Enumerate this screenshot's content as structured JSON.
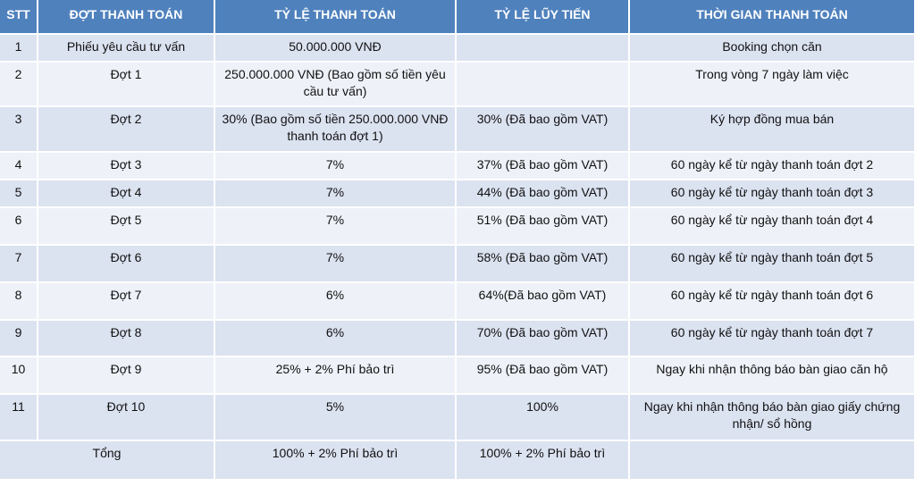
{
  "table": {
    "headers": {
      "stt": "STT",
      "phase": "ĐỢT THANH TOÁN",
      "rate": "TỶ LỆ THANH TOÁN",
      "cumulative": "TỶ LỆ LŨY TIẾN",
      "time": "THỜI GIAN THANH TOÁN"
    },
    "rows": [
      {
        "stt": "1",
        "phase": "Phiếu yêu cầu tư vấn",
        "rate": "50.000.000 VNĐ",
        "cumulative": "",
        "time": "Booking chọn căn"
      },
      {
        "stt": "2",
        "phase": "Đợt 1",
        "rate": "250.000.000 VNĐ (Bao gồm số tiền yêu cầu tư vấn)",
        "cumulative": "",
        "time": "Trong vòng 7 ngày làm việc"
      },
      {
        "stt": "3",
        "phase": "Đợt 2",
        "rate": "30% (Bao gồm số tiền 250.000.000 VNĐ thanh toán đợt 1)",
        "cumulative": "30% (Đã bao gồm VAT)",
        "time": "Ký hợp đồng mua bán"
      },
      {
        "stt": "4",
        "phase": "Đợt 3",
        "rate": "7%",
        "cumulative": "37% (Đã bao gồm VAT)",
        "time": "60 ngày kể từ ngày thanh toán đợt 2"
      },
      {
        "stt": "5",
        "phase": "Đợt 4",
        "rate": "7%",
        "cumulative": "44% (Đã bao gồm VAT)",
        "time": "60 ngày kể từ ngày thanh toán đợt 3"
      },
      {
        "stt": "6",
        "phase": "Đợt 5",
        "rate": "7%",
        "cumulative": "51% (Đã bao gồm VAT)",
        "time": "60 ngày kể từ ngày thanh toán đợt 4"
      },
      {
        "stt": "7",
        "phase": "Đợt 6",
        "rate": "7%",
        "cumulative": "58% (Đã bao gồm VAT)",
        "time": "60 ngày kể từ ngày thanh toán đợt 5"
      },
      {
        "stt": "8",
        "phase": "Đợt 7",
        "rate": "6%",
        "cumulative": "64%(Đã bao gồm VAT)",
        "time": "60 ngày kể từ ngày thanh toán đợt 6"
      },
      {
        "stt": "9",
        "phase": "Đợt 8",
        "rate": "6%",
        "cumulative": "70% (Đã bao gồm VAT)",
        "time": "60 ngày kể từ ngày thanh toán đợt 7"
      },
      {
        "stt": "10",
        "phase": "Đợt 9",
        "rate": "25% + 2% Phí bảo trì",
        "cumulative": "95% (Đã bao gồm VAT)",
        "time": "Ngay khi nhận thông báo bàn giao căn hộ"
      },
      {
        "stt": "11",
        "phase": "Đợt 10",
        "rate": "5%",
        "cumulative": "100%",
        "time": "Ngay khi nhận thông báo bàn giao giấy chứng nhận/ sổ hồng"
      }
    ],
    "total": {
      "label": "Tổng",
      "rate": "100% + 2% Phí bảo trì",
      "cumulative": "100% + 2% Phí bảo trì",
      "time": ""
    }
  }
}
